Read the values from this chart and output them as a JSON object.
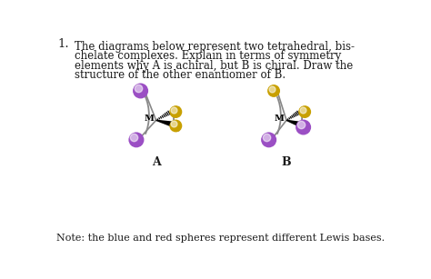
{
  "title_num": "1.",
  "line1": "The diagrams below represent two tetrahedral, bis-",
  "line2": "chelate complexes. Explain in terms of symmetry",
  "line3": "elements why A is achiral, but B is chiral. Draw the",
  "line4": "structure of the other enantiomer of B.",
  "bold_words_A": "A",
  "bold_words_B": "B",
  "note": "Note: the blue and red spheres represent different Lewis bases.",
  "label_A": "A",
  "label_B": "B",
  "M_label": "M",
  "purple_color": "#9B4FC4",
  "gold_color": "#C8A000",
  "bg_color": "#ffffff",
  "text_color": "#1a1a1a",
  "para_fontsize": 8.5,
  "note_fontsize": 8.0,
  "title_fontsize": 9.5
}
